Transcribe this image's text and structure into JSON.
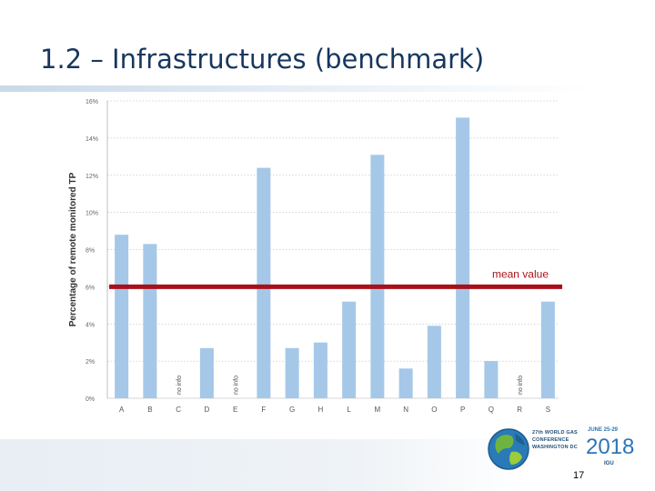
{
  "slide": {
    "title": "1.2 – Infrastructures (benchmark)",
    "page_number": "17"
  },
  "conference": {
    "line1": "27th WORLD GAS",
    "line2": "CONFERENCE",
    "line3": "WASHINGTON DC",
    "dates": "JUNE 25-29",
    "year": "2018",
    "org": "IGU"
  },
  "colors": {
    "bar": "#a5c8e8",
    "mean_line": "#a8111a",
    "grid": "#b0b0b0",
    "title": "#17375e"
  },
  "chart_data": {
    "type": "bar",
    "title": "",
    "xlabel": "",
    "ylabel": "Percentage of remote monitored TP",
    "ylim": [
      0,
      16
    ],
    "yticks": [
      "0%",
      "2%",
      "4%",
      "6%",
      "8%",
      "10%",
      "12%",
      "14%",
      "16%"
    ],
    "categories": [
      "A",
      "B",
      "C",
      "D",
      "E",
      "F",
      "G",
      "H",
      "L",
      "M",
      "N",
      "O",
      "P",
      "Q",
      "R",
      "S"
    ],
    "values": [
      8.8,
      8.3,
      null,
      2.7,
      null,
      12.4,
      2.7,
      3.0,
      5.2,
      13.1,
      1.6,
      3.9,
      15.1,
      2.0,
      null,
      5.2
    ],
    "no_data_label": "no info",
    "mean": {
      "label": "mean value",
      "value": 6.0
    },
    "grid": true
  }
}
